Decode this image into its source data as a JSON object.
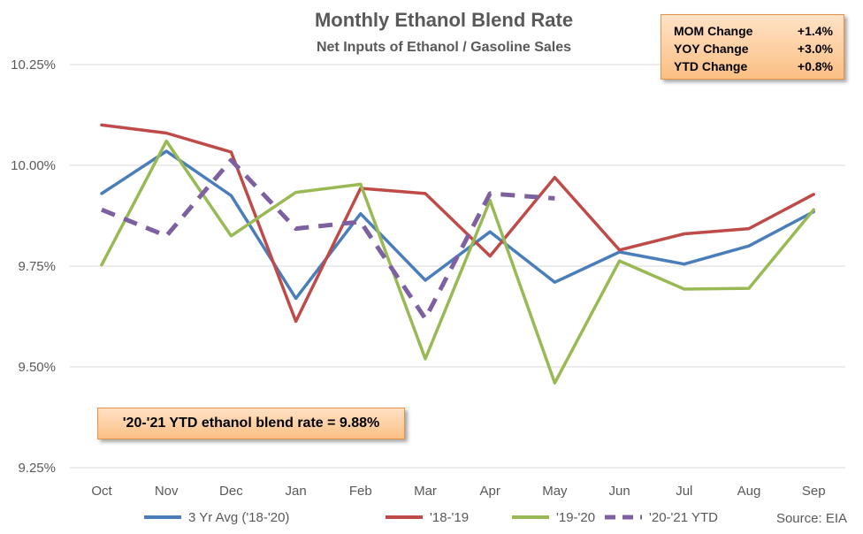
{
  "chart_data": {
    "type": "line",
    "title": "Monthly Ethanol Blend Rate",
    "subtitle": "Net Inputs of Ethanol / Gasoline Sales",
    "categories": [
      "Oct",
      "Nov",
      "Dec",
      "Jan",
      "Feb",
      "Mar",
      "Apr",
      "May",
      "Jun",
      "Jul",
      "Aug",
      "Sep"
    ],
    "ylim": [
      9.25,
      10.25
    ],
    "yticks": [
      "9.25%",
      "9.50%",
      "9.75%",
      "10.00%",
      "10.25%"
    ],
    "ytick_values": [
      9.25,
      9.5,
      9.75,
      10.0,
      10.25
    ],
    "xlabel": "",
    "ylabel": "",
    "grid": "horizontal",
    "legend_position": "bottom",
    "series": [
      {
        "name": "3 Yr Avg ('18-'20)",
        "color": "#4a7ebb",
        "dashed": false,
        "values": [
          9.93,
          10.035,
          9.925,
          9.67,
          9.88,
          9.715,
          9.835,
          9.71,
          9.785,
          9.755,
          9.8,
          9.885
        ]
      },
      {
        "name": "'18-'19",
        "color": "#be4b48",
        "dashed": false,
        "values": [
          10.1,
          10.08,
          10.033,
          9.613,
          9.943,
          9.93,
          9.775,
          9.97,
          9.79,
          9.83,
          9.843,
          9.928
        ]
      },
      {
        "name": "'19-'20",
        "color": "#98b954",
        "dashed": false,
        "values": [
          9.753,
          10.06,
          9.825,
          9.933,
          9.953,
          9.52,
          9.913,
          9.46,
          9.763,
          9.693,
          9.695,
          9.89
        ]
      },
      {
        "name": "'20-'21 YTD",
        "color": "#7d60a0",
        "dashed": true,
        "values": [
          9.89,
          9.825,
          10.013,
          9.843,
          9.86,
          9.62,
          9.93,
          9.918,
          null,
          null,
          null,
          null
        ]
      }
    ]
  },
  "stats": {
    "rows": [
      {
        "label": "MOM Change",
        "value": "+1.4%"
      },
      {
        "label": "YOY Change",
        "value": "+3.0%"
      },
      {
        "label": "YTD Change",
        "value": "+0.8%"
      }
    ]
  },
  "note": "'20-'21 YTD ethanol blend rate = 9.88%",
  "source": "Source: EIA"
}
